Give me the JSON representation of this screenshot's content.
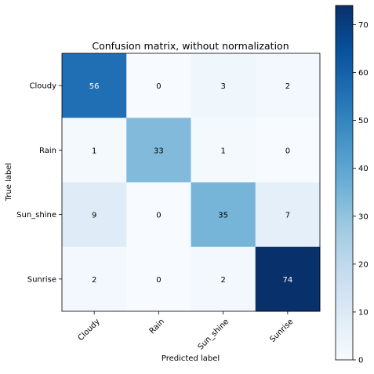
{
  "chart_data": {
    "type": "heatmap",
    "title": "Confusion matrix, without normalization",
    "xlabel": "Predicted label",
    "ylabel": "True label",
    "x_categories": [
      "Cloudy",
      "Rain",
      "Sun_shine",
      "Sunrise"
    ],
    "y_categories": [
      "Cloudy",
      "Rain",
      "Sun_shine",
      "Sunrise"
    ],
    "values": [
      [
        56,
        0,
        3,
        2
      ],
      [
        1,
        33,
        1,
        0
      ],
      [
        9,
        0,
        35,
        7
      ],
      [
        2,
        0,
        2,
        74
      ]
    ],
    "colormap": "Blues",
    "colorbar": {
      "min": 0,
      "max": 74,
      "ticks": [
        0,
        10,
        20,
        30,
        40,
        50,
        60,
        70
      ]
    },
    "text_threshold": 37,
    "colors": {
      "low": "#f7fbff",
      "high": "#08306b",
      "text_dark": "#000000",
      "text_light": "#ffffff"
    }
  }
}
